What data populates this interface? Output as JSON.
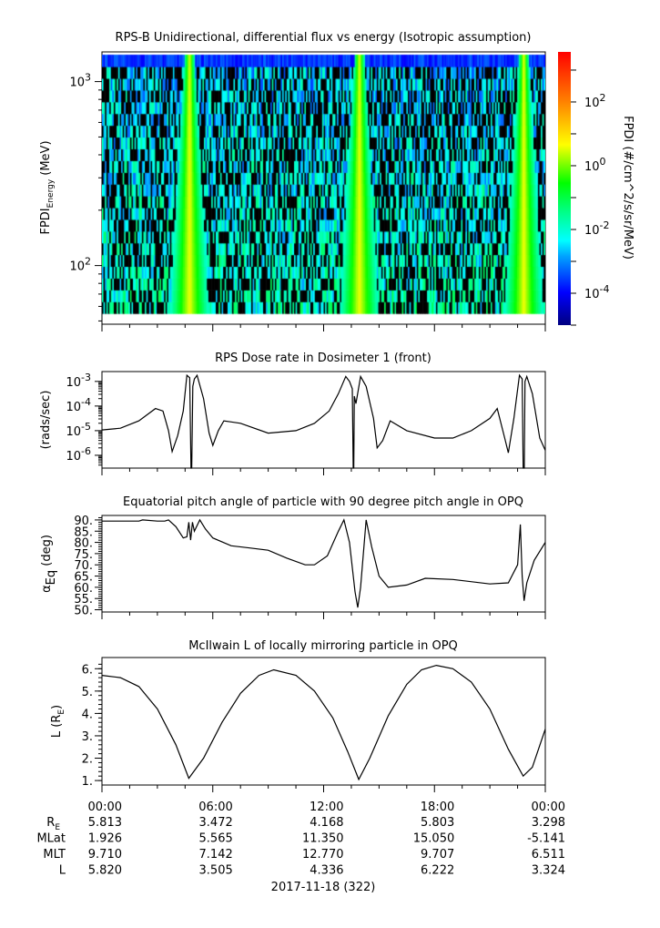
{
  "chart_data": [
    {
      "type": "heatmap",
      "title": "RPS-B  Unidirectional, differential flux vs energy (Isotropic assumption)",
      "ylabel_main": "FPDI",
      "ylabel_sub": "Energy",
      "ylabel_unit": " (MeV)",
      "yscale": "log",
      "ylim": [
        48,
        1450
      ],
      "yticks": [
        {
          "value": 100,
          "base": "10",
          "exp": "2"
        },
        {
          "value": 1000,
          "base": "10",
          "exp": "3"
        }
      ],
      "energy_range_MeV": [
        55,
        1400
      ],
      "xlim_hours": [
        0,
        24
      ],
      "peak_times_hours": [
        4.7,
        13.9,
        22.8
      ],
      "colorbar": {
        "label": "FPDI (#/cm^2/s/sr/MeV)",
        "scale": "log",
        "range_log10": [
          -5.0,
          3.57
        ],
        "ticks": [
          {
            "value": -4,
            "base": "10",
            "exp": "-4"
          },
          {
            "value": -2,
            "base": "10",
            "exp": "-2"
          },
          {
            "value": 0,
            "base": "10",
            "exp": "0"
          },
          {
            "value": 2,
            "base": "10",
            "exp": "2"
          }
        ],
        "colors": [
          "#000080",
          "#0000ff",
          "#00a0ff",
          "#00ffff",
          "#00ff80",
          "#00ff00",
          "#ffff00",
          "#ff8000",
          "#ff0000"
        ]
      }
    },
    {
      "type": "line",
      "title": "RPS  Dose rate in Dosimeter 1 (front)",
      "ylabel": "(rads/sec)",
      "yscale": "log",
      "ylim_log10": [
        -6.52,
        -2.6
      ],
      "yticks": [
        {
          "value": -6,
          "base": "10",
          "exp": "-6"
        },
        {
          "value": -5,
          "base": "10",
          "exp": "-5"
        },
        {
          "value": -4,
          "base": "10",
          "exp": "-4"
        },
        {
          "value": -3,
          "base": "10",
          "exp": "-3"
        }
      ],
      "x_hours": [
        0,
        1,
        2,
        2.9,
        3.3,
        3.6,
        3.8,
        4.1,
        4.4,
        4.6,
        4.75,
        4.82,
        4.86,
        4.92,
        5.0,
        5.15,
        5.5,
        5.8,
        6.0,
        6.3,
        6.6,
        7.5,
        9,
        10.5,
        11.5,
        12.3,
        12.8,
        13.2,
        13.4,
        13.55,
        13.6,
        13.63,
        13.66,
        13.75,
        14.0,
        14.3,
        14.7,
        14.9,
        15.2,
        15.6,
        16.5,
        18,
        19,
        20,
        21,
        21.4,
        21.8,
        22.0,
        22.3,
        22.6,
        22.75,
        22.8,
        22.86,
        22.9,
        23.0,
        23.3,
        23.7,
        24
      ],
      "y_log10": [
        -4.97,
        -4.9,
        -4.6,
        -4.1,
        -4.2,
        -5.0,
        -5.85,
        -5.2,
        -4.2,
        -2.75,
        -2.85,
        -6.6,
        -6.6,
        -3.2,
        -2.9,
        -2.75,
        -3.7,
        -5.1,
        -5.6,
        -5.0,
        -4.6,
        -4.7,
        -5.1,
        -5.0,
        -4.7,
        -4.2,
        -3.5,
        -2.8,
        -3.0,
        -3.3,
        -6.6,
        -6.6,
        -3.6,
        -3.9,
        -2.8,
        -3.2,
        -4.5,
        -5.7,
        -5.4,
        -4.6,
        -5.0,
        -5.3,
        -5.3,
        -5.0,
        -4.5,
        -4.1,
        -5.3,
        -5.9,
        -4.5,
        -2.75,
        -2.9,
        -6.6,
        -6.6,
        -3.0,
        -2.8,
        -3.5,
        -5.3,
        -5.8
      ],
      "series_color": "#000000"
    },
    {
      "type": "line",
      "title": "Equatorial pitch angle of particle with 90 degree pitch angle in OPQ",
      "ylabel_main": "α",
      "ylabel_sub": "Eq",
      "ylabel_unit": " (deg)",
      "ylim": [
        49,
        92
      ],
      "yticks": [
        "50.",
        "55.",
        "60.",
        "65.",
        "70.",
        "75.",
        "80.",
        "85.",
        "90."
      ],
      "x_hours": [
        0,
        2,
        2.2,
        3,
        3.4,
        3.6,
        4,
        4.4,
        4.6,
        4.7,
        4.8,
        4.9,
        5.0,
        5.3,
        5.6,
        6,
        7,
        8,
        9,
        10,
        11,
        11.5,
        12.2,
        12.8,
        13.1,
        13.4,
        13.7,
        13.85,
        14.0,
        14.3,
        14.6,
        15,
        15.5,
        16.5,
        17.5,
        19,
        21,
        22,
        22.5,
        22.65,
        22.75,
        22.85,
        23.0,
        23.4,
        24
      ],
      "y": [
        89.5,
        89.5,
        90,
        89.5,
        89.5,
        90,
        87,
        82,
        82.5,
        89,
        81,
        89,
        85,
        90,
        86,
        82,
        78.5,
        77.5,
        76.5,
        73,
        70,
        70,
        74,
        85,
        90,
        80,
        58,
        51,
        60,
        90,
        78,
        65,
        60,
        61,
        64,
        63.5,
        61.5,
        62,
        70,
        88,
        65,
        54,
        62,
        72,
        80
      ],
      "series_color": "#000000"
    },
    {
      "type": "line",
      "title": "McIlwain L of locally mirroring particle in OPQ",
      "ylabel_main": "L (R",
      "ylabel_sub": "E",
      "ylabel_unit": ")",
      "ylim": [
        0.8,
        6.5
      ],
      "yticks": [
        "1.",
        "2.",
        "3.",
        "4.",
        "5.",
        "6."
      ],
      "x_hours": [
        0,
        1,
        2,
        3,
        4,
        4.7,
        5.5,
        6.5,
        7.5,
        8.5,
        9.3,
        10.5,
        11.5,
        12.5,
        13.3,
        13.9,
        14.5,
        15.5,
        16.5,
        17.3,
        18.1,
        19,
        20,
        21,
        22,
        22.8,
        23.3,
        24
      ],
      "y": [
        5.7,
        5.6,
        5.2,
        4.2,
        2.6,
        1.1,
        2.0,
        3.6,
        4.9,
        5.7,
        5.95,
        5.7,
        5.0,
        3.8,
        2.3,
        1.05,
        2.0,
        3.9,
        5.3,
        5.95,
        6.15,
        6.0,
        5.4,
        4.2,
        2.4,
        1.2,
        1.6,
        3.3
      ],
      "series_color": "#000000"
    }
  ],
  "time_axis": {
    "ticks": [
      "00:00",
      "06:00",
      "12:00",
      "18:00",
      "00:00"
    ],
    "date_label": "2017-11-18 (322)",
    "ephemeris": [
      {
        "label": "R",
        "sub": "E",
        "values": [
          "5.813",
          "3.472",
          "4.168",
          "5.803",
          "3.298"
        ]
      },
      {
        "label": "MLat",
        "sub": "",
        "values": [
          "1.926",
          "5.565",
          "11.350",
          "15.050",
          "-5.141"
        ]
      },
      {
        "label": "MLT",
        "sub": "",
        "values": [
          "9.710",
          "7.142",
          "12.770",
          "9.707",
          "6.511"
        ]
      },
      {
        "label": "L",
        "sub": "",
        "values": [
          "5.820",
          "3.505",
          "4.336",
          "6.222",
          "3.324"
        ]
      }
    ]
  }
}
